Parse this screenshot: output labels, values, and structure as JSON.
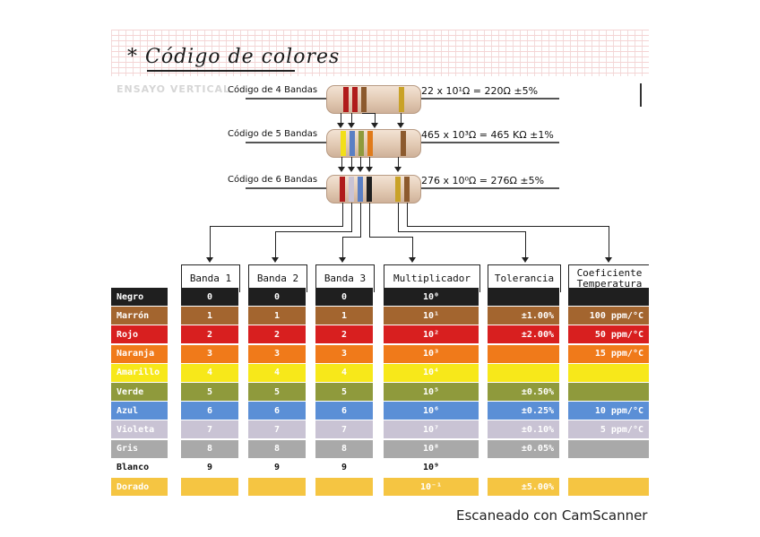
{
  "title": "* Código de colores",
  "ghost_text": "ENSAYO VERTICAL",
  "resistors": [
    {
      "label": "Código de 4 Bandas",
      "formula": "22 x 10¹Ω = 220Ω ±5%"
    },
    {
      "label": "Código de 5 Bandas",
      "formula": "465 x 10³Ω = 465 KΩ ±1%"
    },
    {
      "label": "Código de 6 Bandas",
      "formula": "276 x 10⁰Ω = 276Ω ±5%"
    }
  ],
  "columns": [
    "Banda 1",
    "Banda 2",
    "Banda 3",
    "Multiplicador",
    "Tolerancia",
    "Coeficiente Temperatura"
  ],
  "rows": [
    {
      "name": "Negro",
      "color": "#1f1f1f",
      "text": "#ffffff",
      "b1": "0",
      "b2": "0",
      "b3": "0",
      "mult": "10⁰",
      "tol": "",
      "temp": ""
    },
    {
      "name": "Marrón",
      "color": "#a3652f",
      "text": "#ffffff",
      "b1": "1",
      "b2": "1",
      "b3": "1",
      "mult": "10¹",
      "tol": "±1.00%",
      "temp": "100 ppm/°C"
    },
    {
      "name": "Rojo",
      "color": "#d81f1f",
      "text": "#ffffff",
      "b1": "2",
      "b2": "2",
      "b3": "2",
      "mult": "10²",
      "tol": "±2.00%",
      "temp": "50 ppm/°C"
    },
    {
      "name": "Naranja",
      "color": "#f07a1a",
      "text": "#ffffff",
      "b1": "3",
      "b2": "3",
      "b3": "3",
      "mult": "10³",
      "tol": "",
      "temp": "15 ppm/°C"
    },
    {
      "name": "Amarillo",
      "color": "#f7e81a",
      "text": "#ffffff",
      "b1": "4",
      "b2": "4",
      "b3": "4",
      "mult": "10⁴",
      "tol": "",
      "temp": ""
    },
    {
      "name": "Verde",
      "color": "#8f9a3c",
      "text": "#ffffff",
      "b1": "5",
      "b2": "5",
      "b3": "5",
      "mult": "10⁵",
      "tol": "±0.50%",
      "temp": ""
    },
    {
      "name": "Azul",
      "color": "#5b8fd6",
      "text": "#ffffff",
      "b1": "6",
      "b2": "6",
      "b3": "6",
      "mult": "10⁶",
      "tol": "±0.25%",
      "temp": "10 ppm/°C"
    },
    {
      "name": "Violeta",
      "color": "#c9c3d4",
      "text": "#ffffff",
      "b1": "7",
      "b2": "7",
      "b3": "7",
      "mult": "10⁷",
      "tol": "±0.10%",
      "temp": "5 ppm/°C"
    },
    {
      "name": "Gris",
      "color": "#a9a9a9",
      "text": "#ffffff",
      "b1": "8",
      "b2": "8",
      "b3": "8",
      "mult": "10⁸",
      "tol": "±0.05%",
      "temp": ""
    },
    {
      "name": "Blanco",
      "color": "#ffffff",
      "text": "#111111",
      "b1": "9",
      "b2": "9",
      "b3": "9",
      "mult": "10⁹",
      "tol": "",
      "temp": ""
    },
    {
      "name": "Dorado",
      "color": "#f5c542",
      "text": "#ffffff",
      "b1": "",
      "b2": "",
      "b3": "",
      "mult": "10⁻¹",
      "tol": "±5.00%",
      "temp": ""
    }
  ],
  "footer": "Escaneado con CamScanner"
}
